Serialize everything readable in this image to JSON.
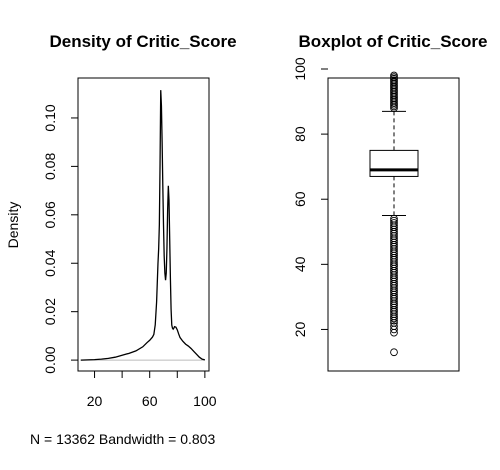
{
  "chart_data": [
    {
      "type": "line",
      "title": "Density of Critic_Score",
      "xlabel": "N = 13362   Bandwidth = 0.803",
      "ylabel": "Density",
      "xlim": [
        8,
        103
      ],
      "ylim": [
        -0.0045,
        0.1165
      ],
      "x_ticks": [
        "20",
        "60",
        "100"
      ],
      "x_tick_values": [
        20,
        60,
        100
      ],
      "y_ticks": [
        "0.00",
        "0.02",
        "0.04",
        "0.06",
        "0.08",
        "0.10"
      ],
      "y_tick_values": [
        0,
        0.02,
        0.04,
        0.06,
        0.08,
        0.1
      ],
      "minor_x_ticks": [
        40,
        80
      ],
      "series": [
        {
          "x": [
            10,
            20,
            25,
            30,
            35,
            40,
            45,
            50,
            55,
            58,
            60,
            62,
            63,
            64,
            65,
            66,
            66.5,
            67,
            67.5,
            68,
            68.5,
            69,
            69.5,
            70,
            70.5,
            71,
            71.5,
            72,
            72.5,
            73,
            73.5,
            74,
            74.5,
            75,
            75.5,
            76,
            76.5,
            77,
            77.5,
            78,
            79,
            80,
            81,
            82,
            84,
            86,
            88,
            90,
            92,
            94,
            96,
            98,
            100
          ],
          "y": [
            0.0,
            0.0002,
            0.0004,
            0.0007,
            0.0012,
            0.002,
            0.0028,
            0.0038,
            0.0055,
            0.0072,
            0.0082,
            0.0095,
            0.0106,
            0.0145,
            0.024,
            0.04,
            0.046,
            0.056,
            0.081,
            0.1115,
            0.105,
            0.09,
            0.072,
            0.056,
            0.043,
            0.036,
            0.033,
            0.036,
            0.046,
            0.062,
            0.072,
            0.066,
            0.05,
            0.034,
            0.021,
            0.0145,
            0.0132,
            0.0128,
            0.0132,
            0.0138,
            0.0136,
            0.0125,
            0.0108,
            0.0093,
            0.0078,
            0.0066,
            0.0058,
            0.0048,
            0.0036,
            0.0024,
            0.0012,
            0.0004,
            0.0001
          ]
        }
      ],
      "baseline": 0
    },
    {
      "type": "box",
      "title": "Boxplot of Critic_Score",
      "ylim": [
        10,
        100
      ],
      "y_ticks": [
        "20",
        "40",
        "60",
        "80",
        "100"
      ],
      "y_tick_values": [
        20,
        40,
        60,
        80,
        100
      ],
      "min_whisker": 55,
      "q1": 67,
      "median": 69,
      "q3": 75,
      "max_whisker": 87,
      "outliers_high": [
        88,
        88.5,
        89,
        89.5,
        90,
        90.5,
        91,
        91.5,
        92,
        92.5,
        93,
        93.5,
        94,
        94.5,
        95,
        95.5,
        96,
        96.5,
        97,
        97.5,
        98
      ],
      "outliers_low": [
        13,
        19,
        20,
        21,
        22,
        22.7,
        23.4,
        24,
        24.7,
        25.4,
        26,
        26.7,
        27.4,
        28,
        28.7,
        29.4,
        30,
        30.7,
        31.4,
        32,
        32.7,
        33.4,
        34,
        34.7,
        35.4,
        36,
        36.7,
        37.4,
        38,
        38.7,
        39.4,
        40,
        40.7,
        41.4,
        42,
        42.7,
        43.4,
        44,
        44.7,
        45.4,
        46,
        46.7,
        47.4,
        48,
        48.7,
        49.4,
        50,
        50.7,
        51.4,
        52,
        52.7,
        53.4,
        54
      ]
    }
  ]
}
